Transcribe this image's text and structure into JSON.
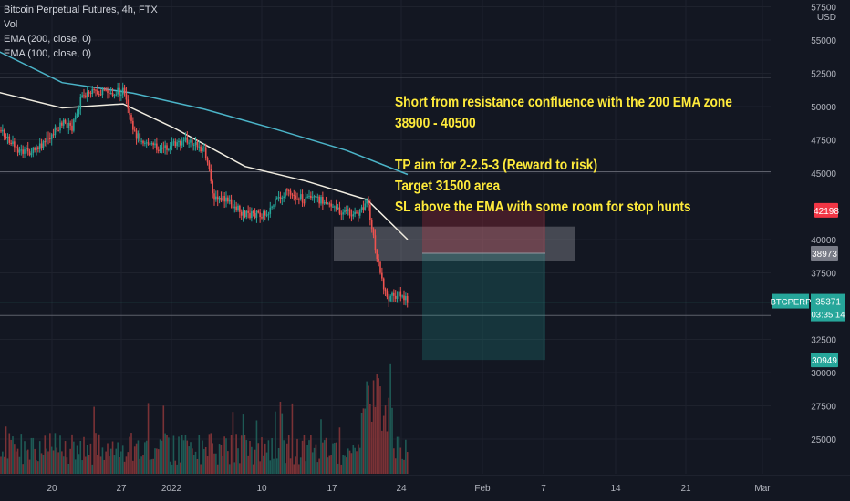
{
  "legend": {
    "title": "Bitcoin Perpetual Futures, 4h, FTX",
    "vol": "Vol",
    "ema200": "EMA (200, close, 0)",
    "ema100": "EMA (100, close, 0)"
  },
  "annotation": {
    "lines": [
      "Short from resistance confluence with the 200 EMA zone",
      "38900 - 40500",
      "",
      "TP aim for 2-2.5-3 (Reward to risk)",
      "Target 31500 area",
      "SL above the EMA with some room for stop hunts"
    ],
    "color": "#ffeb3b"
  },
  "price_axis": {
    "currency": "USD",
    "ticks": [
      "57500",
      "55000",
      "52500",
      "50000",
      "47500",
      "45000",
      "40000",
      "37500",
      "32500",
      "30000",
      "27500",
      "25000"
    ]
  },
  "time_axis": {
    "ticks": [
      "20",
      "27",
      "2022",
      "10",
      "17",
      "24",
      "Feb",
      "7",
      "14",
      "21",
      "Mar"
    ]
  },
  "badges": {
    "stop": {
      "text": "42198",
      "color": "#f23645"
    },
    "entry": {
      "text": "38973",
      "color": "#787b86"
    },
    "symbol": {
      "text": "BTCPERP",
      "color": "#26a69a"
    },
    "price": {
      "text": "35371",
      "color": "#26a69a"
    },
    "countdown": {
      "text": "03:35:14",
      "color": "#26a69a"
    },
    "target": {
      "text": "30949",
      "color": "#26a69a"
    }
  },
  "colors": {
    "up": "#26a69a",
    "down": "#ef5350",
    "ema200": "#4bb4c8",
    "ema100": "#f0ece0",
    "background": "#131722"
  },
  "chart_data": {
    "type": "candlestick",
    "symbol": "BTCPERP",
    "timeframe": "4h",
    "exchange": "FTX",
    "current_price": 35371,
    "ylim": [
      23500,
      57800
    ],
    "position": {
      "side": "short",
      "entry": 38973,
      "stop": 42198,
      "target": 30949
    },
    "resistance_zone": [
      38900,
      40500
    ],
    "horizontal_levels": [
      52200,
      45100,
      35300,
      34300
    ],
    "close_path": [
      {
        "date": "2021-12-13",
        "price": 47500
      },
      {
        "date": "2021-12-14",
        "price": 49000
      },
      {
        "date": "2021-12-16",
        "price": 47200
      },
      {
        "date": "2021-12-17",
        "price": 46600
      },
      {
        "date": "2021-12-18",
        "price": 46600
      },
      {
        "date": "2021-12-19",
        "price": 47000
      },
      {
        "date": "2021-12-21",
        "price": 48800
      },
      {
        "date": "2021-12-22",
        "price": 48400
      },
      {
        "date": "2021-12-23",
        "price": 51000
      },
      {
        "date": "2021-12-24",
        "price": 51000
      },
      {
        "date": "2021-12-26",
        "price": 51000
      },
      {
        "date": "2021-12-27",
        "price": 51200
      },
      {
        "date": "2021-12-28",
        "price": 48000
      },
      {
        "date": "2021-12-30",
        "price": 47000
      },
      {
        "date": "2021-12-31",
        "price": 46800
      },
      {
        "date": "2022-01-02",
        "price": 47500
      },
      {
        "date": "2022-01-04",
        "price": 46800
      },
      {
        "date": "2022-01-05",
        "price": 43000
      },
      {
        "date": "2022-01-06",
        "price": 43000
      },
      {
        "date": "2022-01-08",
        "price": 41900
      },
      {
        "date": "2022-01-10",
        "price": 41900
      },
      {
        "date": "2022-01-11",
        "price": 42800
      },
      {
        "date": "2022-01-12",
        "price": 43500
      },
      {
        "date": "2022-01-14",
        "price": 43000
      },
      {
        "date": "2022-01-16",
        "price": 43000
      },
      {
        "date": "2022-01-17",
        "price": 42200
      },
      {
        "date": "2022-01-18",
        "price": 42100
      },
      {
        "date": "2022-01-19",
        "price": 41800
      },
      {
        "date": "2022-01-20",
        "price": 43000
      },
      {
        "date": "2022-01-21",
        "price": 38500
      },
      {
        "date": "2022-01-22",
        "price": 35500
      },
      {
        "date": "2022-01-23",
        "price": 35900
      },
      {
        "date": "2022-01-24",
        "price": 35371
      }
    ],
    "ema200_path": [
      {
        "date": "2021-12-13",
        "price": 54800
      },
      {
        "date": "2021-12-21",
        "price": 51800
      },
      {
        "date": "2021-12-28",
        "price": 51000
      },
      {
        "date": "2022-01-04",
        "price": 49800
      },
      {
        "date": "2022-01-11",
        "price": 48300
      },
      {
        "date": "2022-01-18",
        "price": 46700
      },
      {
        "date": "2022-01-24",
        "price": 44900
      }
    ],
    "ema100_path": [
      {
        "date": "2021-12-13",
        "price": 51400
      },
      {
        "date": "2021-12-21",
        "price": 49900
      },
      {
        "date": "2021-12-27",
        "price": 50200
      },
      {
        "date": "2022-01-01",
        "price": 48400
      },
      {
        "date": "2022-01-08",
        "price": 45500
      },
      {
        "date": "2022-01-14",
        "price": 44400
      },
      {
        "date": "2022-01-20",
        "price": 43000
      },
      {
        "date": "2022-01-24",
        "price": 40000
      }
    ]
  }
}
